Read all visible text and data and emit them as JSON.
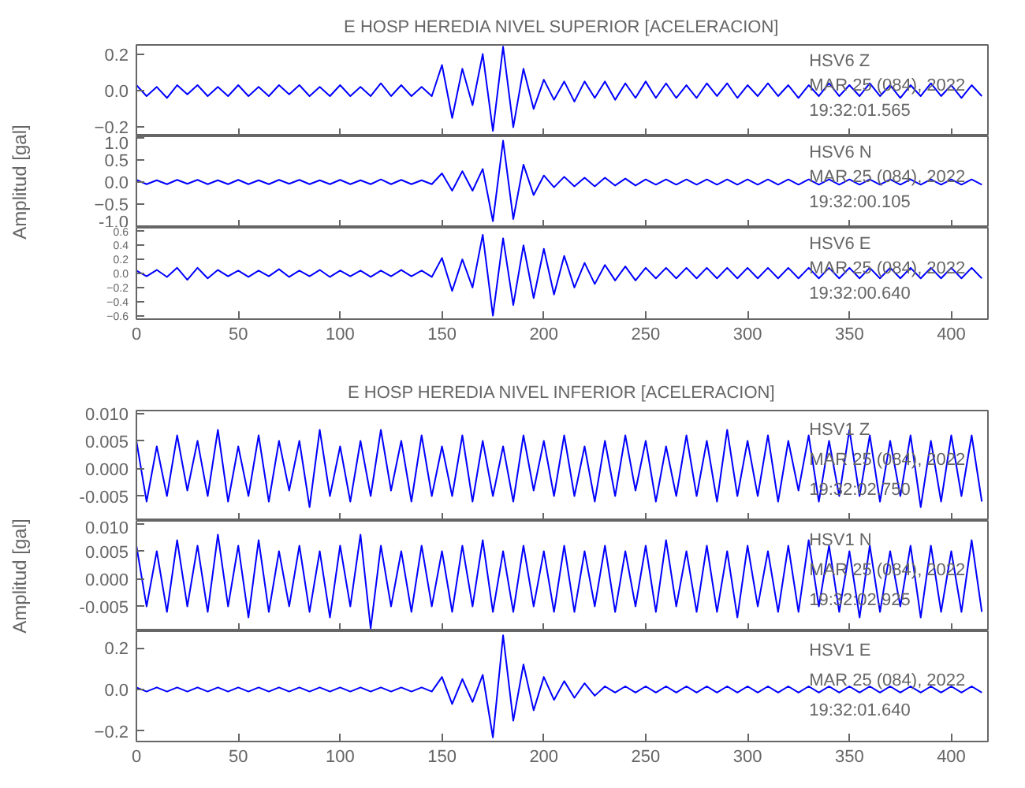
{
  "chart_data": [
    {
      "type": "line",
      "title": "E HOSP HEREDIA NIVEL SUPERIOR [ACELERACION]",
      "xlim": [
        0,
        418
      ],
      "xticks": [
        0,
        50,
        100,
        150,
        200,
        250,
        300,
        350,
        400
      ],
      "ylim": [
        -0.25,
        0.25
      ],
      "yticks": [
        -0.2,
        {
          "value": 0,
          "label": "0.0"
        },
        0.2
      ],
      "tick_labels": "y",
      "annotations": [
        "HSV6   Z",
        "MAR 25 (084), 2022",
        "19:32:01.565"
      ],
      "x": [
        0,
        5,
        10,
        15,
        20,
        25,
        30,
        35,
        40,
        45,
        50,
        55,
        60,
        65,
        70,
        75,
        80,
        85,
        90,
        95,
        100,
        105,
        110,
        115,
        120,
        125,
        130,
        135,
        140,
        145,
        150,
        155,
        160,
        165,
        170,
        175,
        180,
        185,
        190,
        195,
        200,
        205,
        210,
        215,
        220,
        225,
        230,
        235,
        240,
        245,
        250,
        255,
        260,
        265,
        270,
        275,
        280,
        285,
        290,
        295,
        300,
        305,
        310,
        315,
        320,
        325,
        330,
        335,
        340,
        345,
        350,
        355,
        360,
        365,
        370,
        375,
        380,
        385,
        390,
        395,
        400,
        405,
        410,
        415
      ],
      "series": [
        {
          "color": "#0000ff",
          "values": [
            0.03,
            -0.03,
            0.02,
            -0.04,
            0.03,
            -0.02,
            0.03,
            -0.03,
            0.02,
            -0.03,
            0.03,
            -0.03,
            0.02,
            -0.03,
            0.03,
            -0.02,
            0.03,
            -0.03,
            0.02,
            -0.03,
            0.03,
            -0.03,
            0.02,
            -0.03,
            0.04,
            -0.03,
            0.03,
            -0.03,
            0.02,
            -0.03,
            0.14,
            -0.15,
            0.12,
            -0.08,
            0.2,
            -0.22,
            0.24,
            -0.2,
            0.12,
            -0.1,
            0.06,
            -0.05,
            0.05,
            -0.06,
            0.05,
            -0.04,
            0.05,
            -0.05,
            0.04,
            -0.04,
            0.05,
            -0.04,
            0.04,
            -0.04,
            0.03,
            -0.04,
            0.04,
            -0.03,
            0.04,
            -0.04,
            0.03,
            -0.03,
            0.04,
            -0.03,
            0.03,
            -0.04,
            0.03,
            -0.03,
            0.04,
            -0.03,
            0.03,
            -0.03,
            0.04,
            -0.03,
            0.03,
            -0.04,
            0.03,
            -0.03,
            0.04,
            -0.03,
            0.03,
            -0.04,
            0.03,
            -0.03
          ]
        }
      ]
    },
    {
      "type": "line",
      "ylabel": "Amplitud [gal]",
      "xlim": [
        0,
        418
      ],
      "xticks": [
        0,
        50,
        100,
        150,
        200,
        250,
        300,
        350,
        400
      ],
      "ylim": [
        -1.05,
        1.05
      ],
      "yticks": [
        {
          "value": -1,
          "label": "-1.0"
        },
        -0.5,
        {
          "value": 0,
          "label": "0.0"
        },
        0.5,
        {
          "value": 1,
          "label": "1.0"
        }
      ],
      "tick_labels": "y",
      "annotations": [
        "HSV6   N",
        "MAR 25 (084), 2022",
        "19:32:00.105"
      ],
      "x": [
        0,
        5,
        10,
        15,
        20,
        25,
        30,
        35,
        40,
        45,
        50,
        55,
        60,
        65,
        70,
        75,
        80,
        85,
        90,
        95,
        100,
        105,
        110,
        115,
        120,
        125,
        130,
        135,
        140,
        145,
        150,
        155,
        160,
        165,
        170,
        175,
        180,
        185,
        190,
        195,
        200,
        205,
        210,
        215,
        220,
        225,
        230,
        235,
        240,
        245,
        250,
        255,
        260,
        265,
        270,
        275,
        280,
        285,
        290,
        295,
        300,
        305,
        310,
        315,
        320,
        325,
        330,
        335,
        340,
        345,
        350,
        355,
        360,
        365,
        370,
        375,
        380,
        385,
        390,
        395,
        400,
        405,
        410,
        415
      ],
      "series": [
        {
          "color": "#0000ff",
          "values": [
            0.05,
            -0.05,
            0.04,
            -0.05,
            0.05,
            -0.04,
            0.05,
            -0.05,
            0.04,
            -0.05,
            0.05,
            -0.05,
            0.04,
            -0.05,
            0.05,
            -0.04,
            0.05,
            -0.05,
            0.04,
            -0.05,
            0.05,
            -0.05,
            0.04,
            -0.05,
            0.06,
            -0.05,
            0.05,
            -0.05,
            0.04,
            -0.05,
            0.2,
            -0.2,
            0.25,
            -0.2,
            0.3,
            -0.9,
            0.95,
            -0.85,
            0.4,
            -0.3,
            0.15,
            -0.12,
            0.12,
            -0.1,
            0.1,
            -0.1,
            0.1,
            -0.08,
            0.08,
            -0.08,
            0.06,
            -0.06,
            0.06,
            -0.06,
            0.06,
            -0.06,
            0.06,
            -0.06,
            0.06,
            -0.06,
            0.06,
            -0.06,
            0.06,
            -0.06,
            0.06,
            -0.06,
            0.06,
            -0.06,
            0.06,
            -0.06,
            0.06,
            -0.06,
            0.06,
            -0.06,
            0.06,
            -0.06,
            0.06,
            -0.06,
            0.06,
            -0.06,
            0.06,
            -0.06,
            0.06,
            -0.06
          ]
        }
      ]
    },
    {
      "type": "line",
      "xlim": [
        0,
        418
      ],
      "xticks": [
        0,
        50,
        100,
        150,
        200,
        250,
        300,
        350,
        400
      ],
      "ylim": [
        -0.65,
        0.65
      ],
      "yticks": [
        -0.6,
        -0.4,
        -0.2,
        {
          "value": 0,
          "label": "0.0"
        },
        0.2,
        0.4,
        0.6
      ],
      "annotations": [
        "HSV6   E",
        "MAR 25 (084), 2022",
        "19:32:00.640"
      ],
      "x": [
        0,
        5,
        10,
        15,
        20,
        25,
        30,
        35,
        40,
        45,
        50,
        55,
        60,
        65,
        70,
        75,
        80,
        85,
        90,
        95,
        100,
        105,
        110,
        115,
        120,
        125,
        130,
        135,
        140,
        145,
        150,
        155,
        160,
        165,
        170,
        175,
        180,
        185,
        190,
        195,
        200,
        205,
        210,
        215,
        220,
        225,
        230,
        235,
        240,
        245,
        250,
        255,
        260,
        265,
        270,
        275,
        280,
        285,
        290,
        295,
        300,
        305,
        310,
        315,
        320,
        325,
        330,
        335,
        340,
        345,
        350,
        355,
        360,
        365,
        370,
        375,
        380,
        385,
        390,
        395,
        400,
        405,
        410,
        415
      ],
      "series": [
        {
          "color": "#0000ff",
          "values": [
            0.04,
            -0.04,
            0.05,
            -0.05,
            0.08,
            -0.09,
            0.08,
            -0.07,
            0.05,
            -0.04,
            0.04,
            -0.05,
            0.04,
            -0.04,
            0.06,
            -0.05,
            0.04,
            -0.04,
            0.05,
            -0.05,
            0.04,
            -0.04,
            0.04,
            -0.05,
            0.04,
            -0.04,
            0.05,
            -0.04,
            0.04,
            -0.05,
            0.22,
            -0.25,
            0.2,
            -0.2,
            0.55,
            -0.6,
            0.5,
            -0.45,
            0.4,
            -0.35,
            0.35,
            -0.3,
            0.25,
            -0.2,
            0.15,
            -0.15,
            0.12,
            -0.1,
            0.1,
            -0.1,
            0.08,
            -0.07,
            0.08,
            -0.07,
            0.08,
            -0.07,
            0.08,
            -0.07,
            0.08,
            -0.07,
            0.08,
            -0.07,
            0.08,
            -0.07,
            0.08,
            -0.07,
            0.08,
            -0.07,
            0.08,
            -0.07,
            0.08,
            -0.07,
            0.08,
            -0.07,
            0.08,
            -0.07,
            0.08,
            -0.07,
            0.08,
            -0.07,
            0.08,
            -0.07,
            0.08,
            -0.07
          ]
        }
      ]
    },
    {
      "type": "line",
      "title": "E HOSP HEREDIA NIVEL INFERIOR [ACELERACION]",
      "xlim": [
        0,
        418
      ],
      "xticks": [
        0,
        50,
        100,
        150,
        200,
        250,
        300,
        350,
        400
      ],
      "ylim": [
        -0.0095,
        0.0105
      ],
      "yticks": [
        {
          "value": -0.005,
          "label": "-0.005"
        },
        {
          "value": 0,
          "label": "0.000"
        },
        {
          "value": 0.005,
          "label": "0.005"
        },
        {
          "value": 0.01,
          "label": "0.010"
        }
      ],
      "tick_labels": "y",
      "annotations": [
        "HSV1   Z",
        "MAR 25 (084), 2022",
        "19:32:02.750"
      ],
      "x": [
        0,
        5,
        10,
        15,
        20,
        25,
        30,
        35,
        40,
        45,
        50,
        55,
        60,
        65,
        70,
        75,
        80,
        85,
        90,
        95,
        100,
        105,
        110,
        115,
        120,
        125,
        130,
        135,
        140,
        145,
        150,
        155,
        160,
        165,
        170,
        175,
        180,
        185,
        190,
        195,
        200,
        205,
        210,
        215,
        220,
        225,
        230,
        235,
        240,
        245,
        250,
        255,
        260,
        265,
        270,
        275,
        280,
        285,
        290,
        295,
        300,
        305,
        310,
        315,
        320,
        325,
        330,
        335,
        340,
        345,
        350,
        355,
        360,
        365,
        370,
        375,
        380,
        385,
        390,
        395,
        400,
        405,
        410,
        415
      ],
      "series": [
        {
          "color": "#0000ff",
          "values": [
            0.005,
            -0.006,
            0.004,
            -0.005,
            0.006,
            -0.004,
            0.005,
            -0.005,
            0.007,
            -0.006,
            0.004,
            -0.005,
            0.006,
            -0.006,
            0.005,
            -0.004,
            0.005,
            -0.007,
            0.007,
            -0.005,
            0.004,
            -0.006,
            0.005,
            -0.005,
            0.007,
            -0.004,
            0.005,
            -0.006,
            0.006,
            -0.005,
            0.004,
            -0.005,
            0.006,
            -0.006,
            0.005,
            -0.005,
            0.004,
            -0.006,
            0.006,
            -0.004,
            0.005,
            -0.005,
            0.006,
            -0.005,
            0.004,
            -0.006,
            0.005,
            -0.005,
            0.006,
            -0.004,
            0.005,
            -0.006,
            0.004,
            -0.005,
            0.006,
            -0.005,
            0.005,
            -0.006,
            0.007,
            -0.005,
            0.005,
            -0.005,
            0.006,
            -0.006,
            0.005,
            -0.004,
            0.006,
            -0.006,
            0.005,
            -0.005,
            0.007,
            -0.005,
            0.006,
            -0.006,
            0.005,
            -0.005,
            0.006,
            -0.007,
            0.005,
            -0.006,
            0.006,
            -0.005,
            0.006,
            -0.006
          ]
        }
      ]
    },
    {
      "type": "line",
      "ylabel": "Amplitud [gal]",
      "xlim": [
        0,
        418
      ],
      "xticks": [
        0,
        50,
        100,
        150,
        200,
        250,
        300,
        350,
        400
      ],
      "ylim": [
        -0.0095,
        0.0105
      ],
      "yticks": [
        {
          "value": -0.005,
          "label": "-0.005"
        },
        {
          "value": 0,
          "label": "0.000"
        },
        {
          "value": 0.005,
          "label": "0.005"
        },
        {
          "value": 0.01,
          "label": "0.010"
        }
      ],
      "tick_labels": "y",
      "annotations": [
        "HSV1   N",
        "MAR 25 (084), 2022",
        "19:32:02.925"
      ],
      "x": [
        0,
        5,
        10,
        15,
        20,
        25,
        30,
        35,
        40,
        45,
        50,
        55,
        60,
        65,
        70,
        75,
        80,
        85,
        90,
        95,
        100,
        105,
        110,
        115,
        120,
        125,
        130,
        135,
        140,
        145,
        150,
        155,
        160,
        165,
        170,
        175,
        180,
        185,
        190,
        195,
        200,
        205,
        210,
        215,
        220,
        225,
        230,
        235,
        240,
        245,
        250,
        255,
        260,
        265,
        270,
        275,
        280,
        285,
        290,
        295,
        300,
        305,
        310,
        315,
        320,
        325,
        330,
        335,
        340,
        345,
        350,
        355,
        360,
        365,
        370,
        375,
        380,
        385,
        390,
        395,
        400,
        405,
        410,
        415
      ],
      "series": [
        {
          "color": "#0000ff",
          "values": [
            0.006,
            -0.005,
            0.005,
            -0.006,
            0.007,
            -0.005,
            0.006,
            -0.006,
            0.008,
            -0.005,
            0.006,
            -0.007,
            0.007,
            -0.006,
            0.005,
            -0.005,
            0.006,
            -0.006,
            0.005,
            -0.007,
            0.006,
            -0.005,
            0.008,
            -0.009,
            0.006,
            -0.005,
            0.005,
            -0.006,
            0.006,
            -0.005,
            0.005,
            -0.006,
            0.006,
            -0.005,
            0.007,
            -0.006,
            0.005,
            -0.006,
            0.006,
            -0.005,
            0.005,
            -0.006,
            0.006,
            -0.006,
            0.005,
            -0.005,
            0.006,
            -0.006,
            0.005,
            -0.005,
            0.006,
            -0.006,
            0.007,
            -0.005,
            0.005,
            -0.006,
            0.006,
            -0.006,
            0.005,
            -0.007,
            0.006,
            -0.005,
            0.005,
            -0.006,
            0.006,
            -0.006,
            0.007,
            -0.005,
            0.006,
            -0.006,
            0.005,
            -0.007,
            0.006,
            -0.006,
            0.005,
            -0.005,
            0.006,
            -0.007,
            0.006,
            -0.006,
            0.005,
            -0.006,
            0.007,
            -0.006
          ]
        }
      ]
    },
    {
      "type": "line",
      "xlim": [
        0,
        418
      ],
      "xticks": [
        0,
        50,
        100,
        150,
        200,
        250,
        300,
        350,
        400
      ],
      "ylim": [
        -0.25,
        0.28
      ],
      "yticks": [
        -0.2,
        {
          "value": 0,
          "label": "0.0"
        },
        0.2
      ],
      "annotations": [
        "HSV1   E",
        "MAR 25 (084), 2022",
        "19:32:01.640"
      ],
      "x": [
        0,
        5,
        10,
        15,
        20,
        25,
        30,
        35,
        40,
        45,
        50,
        55,
        60,
        65,
        70,
        75,
        80,
        85,
        90,
        95,
        100,
        105,
        110,
        115,
        120,
        125,
        130,
        135,
        140,
        145,
        150,
        155,
        160,
        165,
        170,
        175,
        180,
        185,
        190,
        195,
        200,
        205,
        210,
        215,
        220,
        225,
        230,
        235,
        240,
        245,
        250,
        255,
        260,
        265,
        270,
        275,
        280,
        285,
        290,
        295,
        300,
        305,
        310,
        315,
        320,
        325,
        330,
        335,
        340,
        345,
        350,
        355,
        360,
        365,
        370,
        375,
        380,
        385,
        390,
        395,
        400,
        405,
        410,
        415
      ],
      "series": [
        {
          "color": "#0000ff",
          "values": [
            0.01,
            -0.01,
            0.01,
            -0.01,
            0.01,
            -0.01,
            0.01,
            -0.01,
            0.01,
            -0.01,
            0.01,
            -0.01,
            0.01,
            -0.01,
            0.01,
            -0.01,
            0.01,
            -0.01,
            0.01,
            -0.01,
            0.01,
            -0.01,
            0.01,
            -0.01,
            0.01,
            -0.01,
            0.01,
            -0.01,
            0.01,
            -0.01,
            0.06,
            -0.07,
            0.05,
            -0.06,
            0.07,
            -0.23,
            0.26,
            -0.15,
            0.12,
            -0.1,
            0.06,
            -0.05,
            0.04,
            -0.04,
            0.03,
            -0.03,
            0.015,
            -0.015,
            0.015,
            -0.015,
            0.015,
            -0.015,
            0.015,
            -0.015,
            0.015,
            -0.015,
            0.015,
            -0.015,
            0.015,
            -0.015,
            0.015,
            -0.015,
            0.015,
            -0.015,
            0.015,
            -0.015,
            0.015,
            -0.015,
            0.015,
            -0.015,
            0.015,
            -0.015,
            0.015,
            -0.015,
            0.015,
            -0.015,
            0.015,
            -0.015,
            0.015,
            -0.015,
            0.015,
            -0.015,
            0.015,
            -0.015
          ]
        }
      ]
    }
  ]
}
